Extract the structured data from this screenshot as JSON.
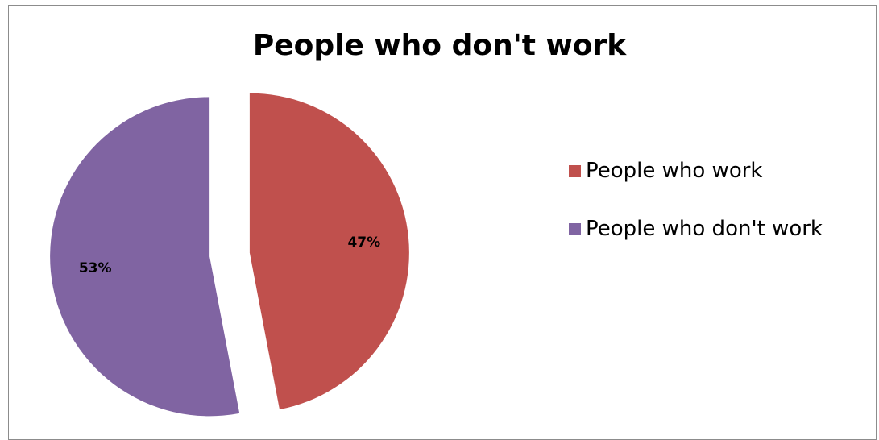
{
  "chart_data": {
    "type": "pie",
    "title": "People who don't work",
    "slices": [
      {
        "name": "People who work",
        "value": 47,
        "label": "47%",
        "color": "#c0504d"
      },
      {
        "name": "People who don't work",
        "value": 53,
        "label": "53%",
        "color": "#8064a2"
      }
    ],
    "legend_position": "right",
    "exploded": true
  }
}
